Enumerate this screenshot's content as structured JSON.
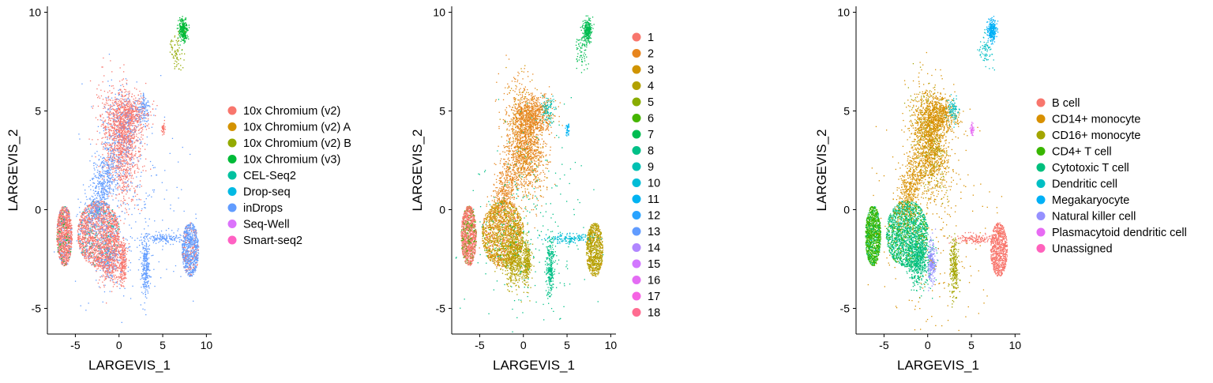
{
  "chart_data": [
    {
      "type": "scatter",
      "xlabel": "LARGEVIS_1",
      "ylabel": "LARGEVIS_2",
      "xlim": [
        -8.2,
        10.6
      ],
      "ylim": [
        -6.3,
        10.3
      ],
      "xticks": [
        -5,
        0,
        5,
        10
      ],
      "yticks": [
        -5,
        0,
        5,
        10
      ],
      "legend_position": "right",
      "series": [
        {
          "name": "10x Chromium (v2)",
          "color": "#F8766D"
        },
        {
          "name": "10x Chromium (v2) A",
          "color": "#D39200"
        },
        {
          "name": "10x Chromium (v2) B",
          "color": "#93AA00"
        },
        {
          "name": "10x Chromium (v3)",
          "color": "#00BA38"
        },
        {
          "name": "CEL-Seq2",
          "color": "#00C19F"
        },
        {
          "name": "Drop-seq",
          "color": "#00B9E3"
        },
        {
          "name": "inDrops",
          "color": "#619CFF"
        },
        {
          "name": "Seq-Well",
          "color": "#DB72FB"
        },
        {
          "name": "Smart-seq2",
          "color": "#FF61C3"
        }
      ]
    },
    {
      "type": "scatter",
      "xlabel": "LARGEVIS_1",
      "ylabel": "LARGEVIS_2",
      "xlim": [
        -8.2,
        10.6
      ],
      "ylim": [
        -6.3,
        10.3
      ],
      "xticks": [
        -5,
        0,
        5,
        10
      ],
      "yticks": [
        -5,
        0,
        5,
        10
      ],
      "legend_position": "right",
      "series": [
        {
          "name": "1",
          "color": "#F8766D"
        },
        {
          "name": "2",
          "color": "#E7851E"
        },
        {
          "name": "3",
          "color": "#D09400"
        },
        {
          "name": "4",
          "color": "#B2A100"
        },
        {
          "name": "5",
          "color": "#89AC00"
        },
        {
          "name": "6",
          "color": "#45B500"
        },
        {
          "name": "7",
          "color": "#00BC51"
        },
        {
          "name": "8",
          "color": "#00C087"
        },
        {
          "name": "9",
          "color": "#00C0B2"
        },
        {
          "name": "10",
          "color": "#00BCD6"
        },
        {
          "name": "11",
          "color": "#00B3F2"
        },
        {
          "name": "12",
          "color": "#29A3FF"
        },
        {
          "name": "13",
          "color": "#619CFF"
        },
        {
          "name": "14",
          "color": "#B086FF"
        },
        {
          "name": "15",
          "color": "#D277FF"
        },
        {
          "name": "16",
          "color": "#E46CF4"
        },
        {
          "name": "17",
          "color": "#F564E3"
        },
        {
          "name": "18",
          "color": "#FF6C91"
        }
      ]
    },
    {
      "type": "scatter",
      "xlabel": "LARGEVIS_1",
      "ylabel": "LARGEVIS_2",
      "xlim": [
        -8.2,
        10.6
      ],
      "ylim": [
        -6.3,
        10.3
      ],
      "xticks": [
        -5,
        0,
        5,
        10
      ],
      "yticks": [
        -5,
        0,
        5,
        10
      ],
      "legend_position": "right",
      "series": [
        {
          "name": "B cell",
          "color": "#F8766D"
        },
        {
          "name": "CD14+ monocyte",
          "color": "#D89000"
        },
        {
          "name": "CD16+ monocyte",
          "color": "#A3A500"
        },
        {
          "name": "CD4+ T cell",
          "color": "#39B600"
        },
        {
          "name": "Cytotoxic T cell",
          "color": "#00BF7D"
        },
        {
          "name": "Dendritic cell",
          "color": "#00BFC4"
        },
        {
          "name": "Megakaryocyte",
          "color": "#00B0F6"
        },
        {
          "name": "Natural killer cell",
          "color": "#9590FF"
        },
        {
          "name": "Plasmacytoid dendritic cell",
          "color": "#E76BF3"
        },
        {
          "name": "Unassigned",
          "color": "#FF62BC"
        }
      ]
    }
  ]
}
